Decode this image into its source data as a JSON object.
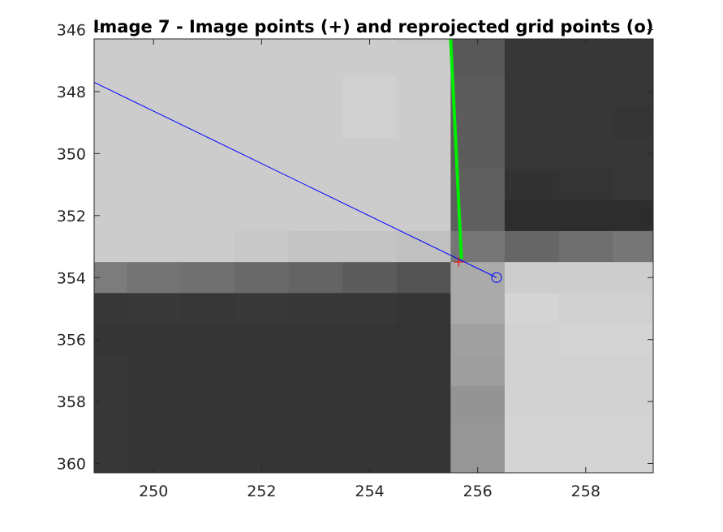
{
  "chart_data": {
    "type": "heatmap",
    "title": "Image 7 - Image points (+) and reprojected grid points (o)",
    "xlabel": "",
    "ylabel": "",
    "xlim": [
      248.9,
      259.25
    ],
    "ylim": [
      346.3,
      360.3
    ],
    "y_reversed": true,
    "colormap": "gray",
    "x_ticks": [
      250,
      252,
      254,
      256,
      258
    ],
    "y_ticks": [
      346,
      348,
      350,
      352,
      354,
      356,
      358,
      360
    ],
    "pixel_columns": [
      249,
      250,
      251,
      252,
      253,
      254,
      255,
      256,
      257,
      258,
      259
    ],
    "pixel_rows": [
      346,
      347,
      348,
      349,
      350,
      351,
      352,
      353,
      354,
      355,
      356,
      357,
      358,
      359,
      360
    ],
    "intensity": [
      [
        204,
        204,
        204,
        204,
        204,
        204,
        200,
        88,
        55,
        55,
        55
      ],
      [
        204,
        204,
        204,
        204,
        204,
        204,
        204,
        88,
        55,
        55,
        55
      ],
      [
        204,
        204,
        204,
        204,
        204,
        208,
        204,
        92,
        55,
        55,
        55
      ],
      [
        204,
        204,
        204,
        204,
        204,
        208,
        204,
        92,
        55,
        55,
        53
      ],
      [
        204,
        204,
        204,
        204,
        204,
        204,
        204,
        92,
        55,
        55,
        55
      ],
      [
        204,
        204,
        204,
        204,
        204,
        204,
        204,
        95,
        50,
        52,
        55
      ],
      [
        204,
        204,
        204,
        204,
        204,
        204,
        204,
        95,
        45,
        45,
        45
      ],
      [
        204,
        204,
        204,
        200,
        196,
        196,
        192,
        118,
        102,
        110,
        118
      ],
      [
        124,
        116,
        112,
        106,
        100,
        92,
        84,
        170,
        205,
        205,
        205
      ],
      [
        55,
        57,
        55,
        57,
        55,
        55,
        53,
        170,
        212,
        208,
        208
      ],
      [
        53,
        53,
        53,
        53,
        53,
        53,
        52,
        160,
        210,
        212,
        212
      ],
      [
        55,
        53,
        53,
        53,
        53,
        53,
        53,
        158,
        210,
        210,
        210
      ],
      [
        55,
        53,
        53,
        53,
        53,
        53,
        53,
        148,
        210,
        210,
        210
      ],
      [
        55,
        53,
        53,
        53,
        53,
        53,
        53,
        150,
        212,
        212,
        212
      ],
      [
        55,
        53,
        53,
        53,
        53,
        53,
        53,
        150,
        212,
        212,
        212
      ]
    ],
    "series": [
      {
        "type": "line",
        "color": "#0000ff",
        "points": [
          [
            248.9,
            347.7
          ],
          [
            256.35,
            354.0
          ]
        ]
      },
      {
        "type": "line",
        "color": "#00ee00",
        "points": [
          [
            255.5,
            346.3
          ],
          [
            255.7,
            353.4
          ]
        ]
      },
      {
        "type": "marker",
        "symbol": "+",
        "color": "#ff0000",
        "points": [
          [
            255.65,
            353.5
          ]
        ]
      },
      {
        "type": "marker",
        "symbol": "o",
        "color": "#0000ff",
        "points": [
          [
            256.35,
            354.0
          ]
        ]
      }
    ],
    "grid": false,
    "legend": "none"
  }
}
